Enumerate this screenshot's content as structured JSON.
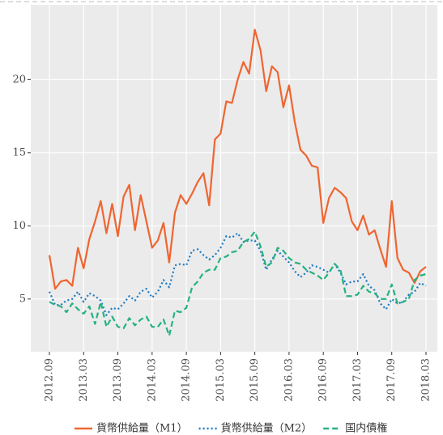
{
  "chart_data": {
    "type": "line",
    "categories": [
      "2012.09",
      null,
      null,
      null,
      null,
      null,
      "2013.03",
      null,
      null,
      null,
      null,
      null,
      "2013.09",
      null,
      null,
      null,
      null,
      null,
      "2014.03",
      null,
      null,
      null,
      null,
      null,
      "2014.09",
      null,
      null,
      null,
      null,
      null,
      "2015.03",
      null,
      null,
      null,
      null,
      null,
      "2015.09",
      null,
      null,
      null,
      null,
      null,
      "2016.03",
      null,
      null,
      null,
      null,
      null,
      "2016.09",
      null,
      null,
      null,
      null,
      null,
      "2017.03",
      null,
      null,
      null,
      null,
      null,
      "2017.09",
      null,
      null,
      null,
      null,
      null,
      "2018.03"
    ],
    "series": [
      {
        "name": "貨幣供給量（M1）",
        "color": "#ef6530",
        "dash": "solid",
        "values": [
          8.0,
          5.7,
          6.2,
          6.3,
          5.9,
          8.5,
          7.1,
          9.1,
          10.3,
          11.7,
          9.5,
          11.5,
          9.3,
          12.0,
          12.8,
          9.7,
          12.1,
          10.3,
          8.5,
          9.0,
          10.2,
          7.5,
          10.9,
          12.1,
          11.5,
          12.2,
          13.0,
          13.6,
          11.4,
          15.9,
          16.3,
          18.5,
          18.4,
          20.0,
          21.2,
          20.4,
          23.4,
          22.0,
          19.2,
          20.9,
          20.5,
          18.1,
          19.6,
          17.1,
          15.2,
          14.8,
          14.1,
          14.0,
          10.2,
          11.9,
          12.6,
          12.3,
          11.9,
          10.3,
          9.7,
          10.7,
          9.4,
          9.7,
          8.4,
          7.2,
          11.7,
          7.8,
          7.0,
          6.8,
          6.1,
          6.9,
          7.2
        ]
      },
      {
        "name": "貨幣供給量（M2）",
        "color": "#1b7ac4",
        "dash": "dotted",
        "values": [
          5.5,
          4.6,
          4.6,
          4.9,
          5.0,
          5.5,
          4.8,
          5.4,
          5.2,
          4.9,
          3.9,
          4.4,
          4.3,
          4.7,
          5.2,
          4.9,
          5.5,
          5.7,
          5.1,
          5.5,
          6.3,
          5.8,
          7.3,
          7.4,
          7.3,
          8.3,
          8.4,
          8.0,
          7.7,
          8.0,
          8.5,
          9.3,
          9.2,
          9.5,
          8.9,
          9.0,
          9.0,
          8.3,
          7.0,
          7.7,
          8.3,
          7.9,
          7.5,
          6.9,
          6.5,
          6.8,
          7.3,
          7.2,
          7.0,
          6.8,
          7.4,
          6.8,
          6.0,
          6.2,
          6.2,
          6.7,
          5.9,
          5.6,
          4.7,
          4.3,
          5.0,
          4.7,
          4.8,
          5.3,
          5.5,
          6.1,
          5.9
        ]
      },
      {
        "name": "国内債権",
        "color": "#25b27f",
        "dash": "dashed",
        "values": [
          4.8,
          4.6,
          4.5,
          4.1,
          4.7,
          4.3,
          4.0,
          4.5,
          3.3,
          4.8,
          3.1,
          3.8,
          3.1,
          3.0,
          3.7,
          3.2,
          3.6,
          3.8,
          3.1,
          3.1,
          3.6,
          2.5,
          4.2,
          4.1,
          4.4,
          5.8,
          6.2,
          6.8,
          7.0,
          7.0,
          7.8,
          7.9,
          8.2,
          8.3,
          8.9,
          9.1,
          9.6,
          8.6,
          7.2,
          7.5,
          8.5,
          8.3,
          7.8,
          7.5,
          7.4,
          7.0,
          6.8,
          6.6,
          6.3,
          6.8,
          7.4,
          7.0,
          5.2,
          5.2,
          5.3,
          5.9,
          5.5,
          5.4,
          5.0,
          5.0,
          6.0,
          4.7,
          4.8,
          5.0,
          6.3,
          6.6,
          6.7
        ]
      }
    ],
    "ylim": [
      1.4,
      25.1
    ],
    "yticks": [
      5,
      10,
      15,
      20
    ],
    "grid": true,
    "legend": "bottom"
  }
}
